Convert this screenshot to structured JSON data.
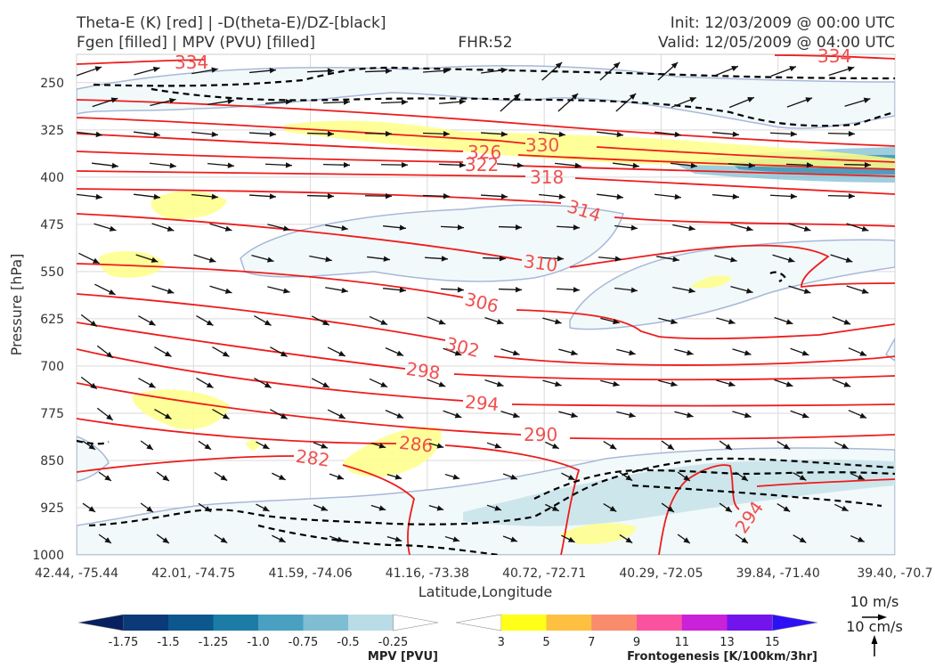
{
  "title": {
    "left_line1": "Theta-E (K) [red] | -D(theta-E)/DZ-[black]",
    "left_line2": "Fgen [filled] | MPV (PVU) [filled]",
    "center": "FHR:52",
    "right_line1": "Init: 12/03/2009 @ 00:00 UTC",
    "right_line2": "Valid: 12/05/2009 @ 04:00 UTC"
  },
  "chart_data": {
    "type": "cross-section",
    "xlabel": "Latitude,Longitude",
    "ylabel": "Pressure [hPa]",
    "x_ticks": [
      "42.44, -75.44",
      "42.01, -74.75",
      "41.59, -74.06",
      "41.16, -73.38",
      "40.72, -72.71",
      "40.29, -72.05",
      "39.84, -71.40",
      "39.40, -70.7"
    ],
    "y_ticks": [
      250,
      325,
      400,
      475,
      550,
      625,
      700,
      775,
      850,
      925,
      1000
    ],
    "ylim": [
      1000,
      205
    ],
    "grid": true,
    "theta_e_contour_labels": [
      "334",
      "334",
      "330",
      "326",
      "322",
      "318",
      "314",
      "310",
      "306",
      "302",
      "298",
      "294",
      "290",
      "286",
      "282",
      "294"
    ],
    "theta_e_color": "#ee1c1c",
    "mpv_colorbar": {
      "label": "MPV [PVU]",
      "ticks": [
        "-1.75",
        "-1.5",
        "-1.25",
        "-1.0",
        "-0.75",
        "-0.5",
        "-0.25"
      ],
      "colors": [
        "#08205f",
        "#0a3a78",
        "#0d578f",
        "#1d7ca6",
        "#4aa0c0",
        "#7fbdd2",
        "#b9dce6",
        "#ffffff"
      ]
    },
    "fgen_colorbar": {
      "label": "Frontogenesis [K/100km/3hr]",
      "ticks": [
        "3",
        "5",
        "7",
        "9",
        "11",
        "13",
        "15"
      ],
      "colors": [
        "#ffffff",
        "#ffff19",
        "#fdc040",
        "#fa8c6e",
        "#fb52a0",
        "#c922d8",
        "#7414ec",
        "#2b10f6"
      ]
    },
    "wind_quiver": {
      "label_h": "10 m/s",
      "label_v": "10 cm/s"
    }
  }
}
